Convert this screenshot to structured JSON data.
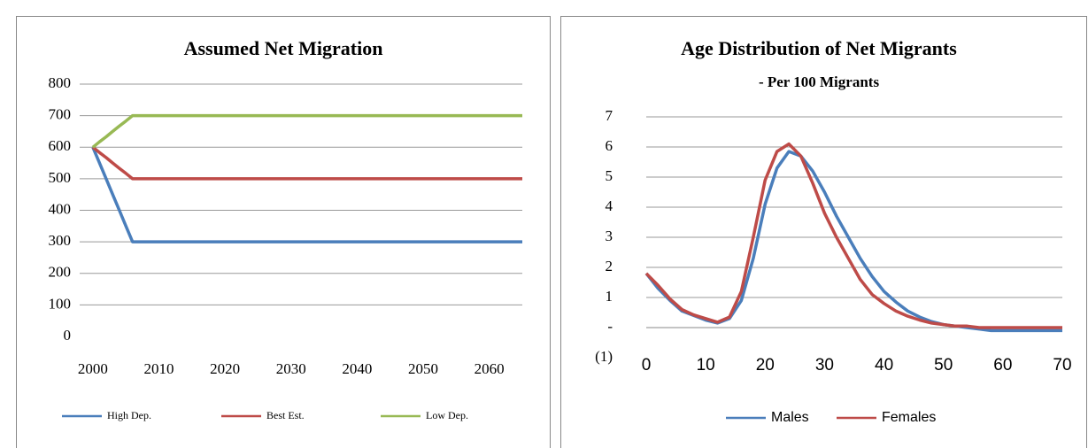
{
  "chart_data": [
    {
      "type": "line",
      "title": "Assumed Net Migration",
      "x": [
        2000,
        2001,
        2002,
        2003,
        2004,
        2005,
        2006,
        2065
      ],
      "xlim": [
        1998,
        2065
      ],
      "xticks": [
        2000,
        2010,
        2020,
        2030,
        2040,
        2050,
        2060
      ],
      "ylim": [
        0,
        800
      ],
      "yticks": [
        0,
        100,
        200,
        300,
        400,
        500,
        600,
        700,
        800
      ],
      "grid": true,
      "legend": "bottom",
      "series": [
        {
          "name": "High Dep.",
          "color": "#4a7ebb",
          "values": [
            600,
            550,
            500,
            450,
            400,
            350,
            300,
            300
          ]
        },
        {
          "name": "Best Est.",
          "color": "#be4b48",
          "values": [
            600,
            583,
            567,
            550,
            533,
            517,
            500,
            500
          ]
        },
        {
          "name": "Low Dep.",
          "color": "#98b954",
          "values": [
            600,
            617,
            633,
            650,
            667,
            683,
            700,
            700
          ]
        }
      ]
    },
    {
      "type": "line",
      "title": "Age Distribution of Net Migrants",
      "subtitle": "- Per 100 Migrants",
      "x": [
        0,
        2,
        4,
        6,
        8,
        10,
        12,
        14,
        16,
        18,
        20,
        22,
        24,
        26,
        28,
        30,
        32,
        34,
        36,
        38,
        40,
        42,
        44,
        46,
        48,
        50,
        52,
        54,
        56,
        58,
        60,
        62,
        64,
        66,
        68,
        70
      ],
      "xlim": [
        0,
        70
      ],
      "xticks": [
        0,
        10,
        20,
        30,
        40,
        50,
        60,
        70
      ],
      "ylim": [
        -1,
        7
      ],
      "yticks": [
        {
          "value": -1,
          "label": "(1)"
        },
        {
          "value": 0,
          "label": "-"
        },
        1,
        2,
        3,
        4,
        5,
        6,
        7
      ],
      "grid": true,
      "legend": "bottom",
      "series": [
        {
          "name": "Males",
          "color": "#4a7ebb",
          "values": [
            1.8,
            1.3,
            0.9,
            0.55,
            0.4,
            0.25,
            0.15,
            0.3,
            0.9,
            2.3,
            4.1,
            5.3,
            5.85,
            5.7,
            5.2,
            4.5,
            3.7,
            3.0,
            2.3,
            1.7,
            1.2,
            0.85,
            0.55,
            0.35,
            0.2,
            0.1,
            0.05,
            0,
            -0.05,
            -0.1,
            -0.1,
            -0.1,
            -0.1,
            -0.1,
            -0.1,
            -0.1
          ]
        },
        {
          "name": "Females",
          "color": "#be4b48",
          "values": [
            1.8,
            1.4,
            0.95,
            0.6,
            0.42,
            0.3,
            0.18,
            0.35,
            1.2,
            3.0,
            4.9,
            5.85,
            6.1,
            5.7,
            4.8,
            3.8,
            3.0,
            2.3,
            1.6,
            1.1,
            0.8,
            0.55,
            0.38,
            0.25,
            0.15,
            0.1,
            0.05,
            0.05,
            0,
            0,
            0,
            0,
            0,
            0,
            0,
            0
          ]
        }
      ]
    }
  ]
}
